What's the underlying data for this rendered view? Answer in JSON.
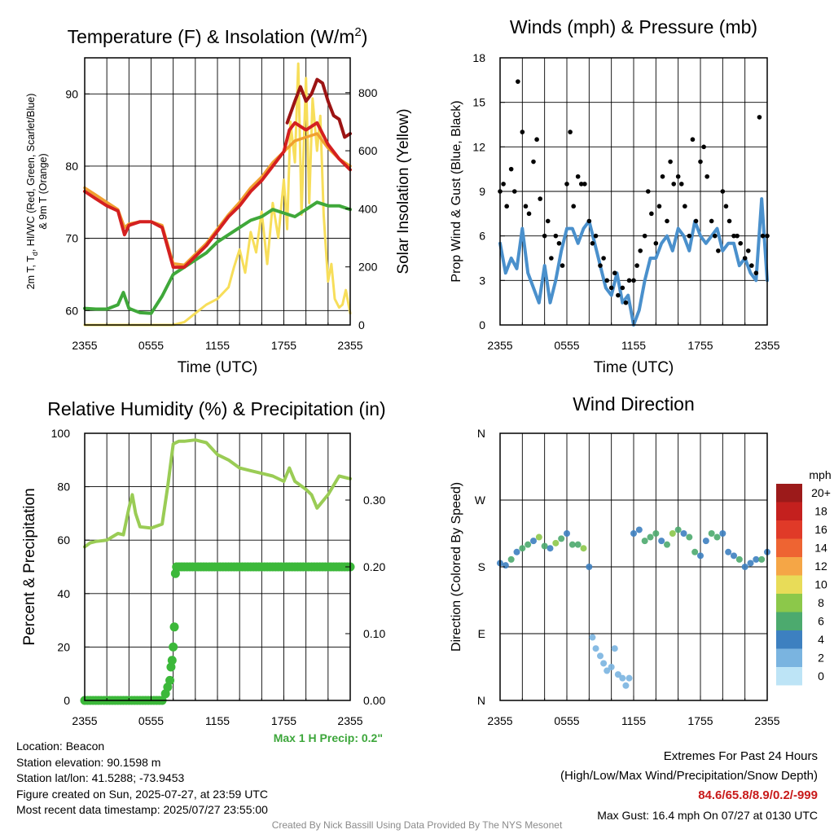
{
  "panels": {
    "temperature": {
      "title": "Temperature (F) & Insolation (W/m",
      "title_sup": "2",
      "title_close": ")",
      "ylabel_left_1": "2m T, T",
      "ylabel_left_sub": "d",
      "ylabel_left_2": ", HI/WC (Red, Green, Scarlet/Blue)",
      "ylabel_left_3": "& 9m T (Orange)",
      "ylabel_right": "Solar Insolation (Yellow)",
      "xlabel": "Time (UTC)"
    },
    "winds": {
      "title": "Winds (mph) & Pressure (mb)",
      "ylabel": "Prop Wind & Gust (Blue, Black)",
      "xlabel": "Time (UTC)"
    },
    "humidity": {
      "title": "Relative Humidity (%) & Precipitation (in)",
      "ylabel": "Percent & Precipitation",
      "max_precip": "Max 1 H Precip: 0.2\""
    },
    "direction": {
      "title": "Wind Direction",
      "ylabel": "Direction (Colored By Speed)",
      "legend_title": "mph"
    }
  },
  "station": {
    "location": "Location: Beacon",
    "elevation": "Station elevation: 90.1598 m",
    "latlon": "Station lat/lon: 41.5288; -73.9453",
    "created": "Figure created on Sun, 2025-07-27, at 23:59 UTC",
    "recent": "Most recent data timestamp: 2025/07/27 23:55:00"
  },
  "extremes": {
    "heading": "Extremes For Past 24 Hours",
    "subheading": "(High/Low/Max Wind/Precipitation/Snow Depth)",
    "values": "84.6/65.8/8.9/0.2/-999",
    "max_gust": "Max Gust: 16.4 mph On 07/27 at 0130 UTC"
  },
  "credit": "Created By Nick Bassill Using Data Provided By The NYS Mesonet",
  "chart_data": [
    {
      "type": "line",
      "title": "Temperature (F) & Insolation (W/m2)",
      "xlabel": "Time (UTC)",
      "x_ticks": [
        "2355",
        "0555",
        "1155",
        "1755",
        "2355"
      ],
      "xlim_hours": [
        0,
        24
      ],
      "ylabel": "2m T, Td, HI/WC (Red, Green, Scarlet/Blue) & 9m T (Orange)",
      "ylim": [
        58,
        95
      ],
      "y_ticks": [
        60,
        70,
        80,
        90
      ],
      "y2label": "Solar Insolation (Yellow)",
      "y2lim": [
        0,
        920
      ],
      "y2_ticks": [
        0,
        200,
        400,
        600,
        800
      ],
      "series": [
        {
          "name": "2m T (Red)",
          "axis": "left",
          "color": "#d42020",
          "x": [
            0,
            1,
            2,
            3,
            3.6,
            4,
            5,
            6,
            7,
            8,
            9,
            10,
            11,
            12,
            13,
            14,
            15,
            16,
            17,
            18,
            18.5,
            19,
            20,
            21,
            22,
            23,
            24
          ],
          "y": [
            76.5,
            75.5,
            74.5,
            73.8,
            70.5,
            71.8,
            72.3,
            72.3,
            71.5,
            66,
            66,
            67.5,
            69,
            71,
            73,
            74.5,
            76.5,
            78,
            80,
            82,
            85,
            86,
            85,
            86,
            83,
            81,
            79.5
          ]
        },
        {
          "name": "9m T (Orange)",
          "axis": "left",
          "color": "#f0a030",
          "x": [
            0,
            1,
            2,
            3,
            3.6,
            4,
            5,
            6,
            7,
            8,
            9,
            10,
            11,
            12,
            13,
            14,
            15,
            16,
            17,
            18,
            19,
            20,
            21,
            22,
            23,
            24
          ],
          "y": [
            77,
            76,
            75,
            74,
            71.5,
            72,
            72.3,
            72.3,
            71.8,
            66.5,
            66.3,
            67.8,
            69.3,
            71.3,
            73.3,
            75,
            77,
            78.5,
            80.5,
            82,
            83.5,
            84,
            84.5,
            82.5,
            81,
            80
          ]
        },
        {
          "name": "Heat Index (Scarlet)",
          "axis": "left",
          "color": "#9c1414",
          "x": [
            18.3,
            19,
            19.5,
            20,
            20.5,
            21,
            21.5,
            22,
            22.5,
            23,
            23.5,
            24
          ],
          "y": [
            86,
            89,
            91,
            89,
            90,
            92,
            91.5,
            89,
            87,
            86.5,
            84,
            84.5
          ]
        },
        {
          "name": "Td (Green)",
          "axis": "left",
          "color": "#3fa83a",
          "x": [
            0,
            1,
            2,
            3,
            3.5,
            4,
            4.5,
            5,
            6,
            7,
            8,
            9,
            10,
            11,
            12,
            13,
            14,
            15,
            16,
            17,
            18,
            19,
            20,
            21,
            22,
            23,
            24
          ],
          "y": [
            60.3,
            60.2,
            60.2,
            60.8,
            62.5,
            60.3,
            60,
            59.7,
            59.6,
            62,
            65,
            66,
            67,
            68,
            69.5,
            70.5,
            71.5,
            72.5,
            73,
            74,
            73.5,
            73,
            74,
            75,
            74.5,
            74.5,
            74
          ]
        },
        {
          "name": "Solar (Yellow)",
          "axis": "right",
          "color": "#f7de5a",
          "x": [
            0,
            6,
            7,
            8,
            9,
            10,
            11,
            12,
            13,
            13.5,
            14,
            14.5,
            15,
            15.5,
            16,
            16.5,
            17,
            17.5,
            18,
            18.3,
            18.6,
            19,
            19.3,
            19.6,
            20,
            20.3,
            20.6,
            21,
            21.3,
            21.6,
            22,
            22.3,
            22.6,
            23,
            23.3,
            23.6,
            24
          ],
          "y": [
            0,
            0,
            0,
            0,
            10,
            40,
            70,
            90,
            130,
            200,
            260,
            180,
            320,
            250,
            390,
            210,
            420,
            300,
            500,
            330,
            700,
            560,
            900,
            380,
            850,
            420,
            780,
            600,
            720,
            380,
            150,
            210,
            90,
            60,
            70,
            120,
            40
          ]
        }
      ]
    },
    {
      "type": "scatter",
      "title": "Winds (mph) & Pressure (mb)",
      "xlabel": "Time (UTC)",
      "x_ticks": [
        "2355",
        "0555",
        "1155",
        "1755",
        "2355"
      ],
      "xlim_hours": [
        0,
        24
      ],
      "ylabel": "Prop Wind & Gust (Blue, Black)",
      "ylim": [
        0,
        18
      ],
      "y_ticks": [
        0,
        3,
        6,
        9,
        12,
        15,
        18
      ],
      "series": [
        {
          "name": "Prop Wind (Blue)",
          "type": "line",
          "color": "#4a90cc",
          "x": [
            0,
            0.5,
            1,
            1.5,
            2,
            2.5,
            3,
            3.5,
            4,
            4.5,
            5,
            5.5,
            6,
            6.5,
            7,
            7.5,
            8,
            8.5,
            9,
            9.5,
            10,
            10.5,
            11,
            11.5,
            12,
            12.5,
            13,
            13.5,
            14,
            14.5,
            15,
            15.5,
            16,
            16.5,
            17,
            17.5,
            18,
            18.5,
            19,
            19.5,
            20,
            20.5,
            21,
            21.5,
            22,
            22.5,
            23,
            23.5,
            24
          ],
          "y": [
            5.5,
            3.5,
            4.5,
            3.8,
            6.5,
            3.5,
            2.5,
            1.5,
            4,
            1.5,
            3,
            5,
            6.5,
            6.5,
            5.5,
            6.5,
            7,
            5.5,
            4,
            2.5,
            2,
            3.5,
            1.5,
            2,
            0,
            1,
            3,
            4.5,
            4.5,
            5.5,
            6,
            5,
            6.5,
            6,
            5,
            7,
            6,
            5.5,
            6,
            6.5,
            5,
            5.5,
            5.5,
            4,
            4.5,
            3.5,
            3,
            8.5,
            3
          ]
        },
        {
          "name": "Gust (Black)",
          "type": "points",
          "color": "#000000",
          "x": [
            0,
            0.3,
            0.6,
            1,
            1.3,
            1.6,
            2,
            2.3,
            2.6,
            3,
            3.3,
            3.6,
            4,
            4.3,
            4.6,
            5,
            5.3,
            5.6,
            6,
            6.3,
            6.6,
            7,
            7.3,
            7.6,
            8,
            8.3,
            8.6,
            9,
            9.3,
            9.6,
            10,
            10.3,
            10.6,
            11,
            11.3,
            11.6,
            12,
            12.3,
            12.6,
            13,
            13.3,
            13.6,
            14,
            14.3,
            14.6,
            15,
            15.3,
            15.6,
            16,
            16.3,
            16.6,
            17,
            17.3,
            17.6,
            18,
            18.3,
            18.6,
            19,
            19.3,
            19.6,
            20,
            20.3,
            20.6,
            21,
            21.3,
            21.6,
            22,
            22.3,
            22.6,
            23,
            23.3,
            23.6,
            24
          ],
          "y": [
            9,
            9.5,
            8,
            10.5,
            9,
            16.4,
            13,
            8,
            7.5,
            11,
            12.5,
            8.5,
            6,
            7,
            4.5,
            6,
            5.5,
            4,
            9.5,
            13,
            8,
            10,
            9.5,
            9.5,
            7,
            5.5,
            6,
            4,
            4.5,
            3,
            2.5,
            3.5,
            2,
            2.5,
            1.5,
            3,
            3,
            4,
            5,
            6,
            9,
            7.5,
            5.5,
            8,
            10,
            7,
            11,
            9.5,
            10,
            9.5,
            8,
            6,
            12.5,
            7,
            11,
            12,
            10,
            7,
            6,
            5,
            9,
            8,
            7,
            6,
            6,
            5.5,
            4.5,
            5,
            4,
            3.5,
            14,
            6,
            6
          ]
        }
      ]
    },
    {
      "type": "line",
      "title": "Relative Humidity (%) & Precipitation (in)",
      "x_ticks": [
        "2355",
        "0555",
        "1155",
        "1755",
        "2355"
      ],
      "xlim_hours": [
        0,
        24
      ],
      "ylabel": "Percent & Precipitation",
      "ylim": [
        0,
        100
      ],
      "y_ticks": [
        0,
        20,
        40,
        60,
        80,
        100
      ],
      "y2lim": [
        0,
        0.4
      ],
      "y2_ticks": [
        "0.00",
        "0.10",
        "0.20",
        "0.30"
      ],
      "series": [
        {
          "name": "Relative Humidity",
          "axis": "left",
          "color": "#9acc55",
          "x": [
            0,
            0.5,
            1,
            2,
            3,
            3.5,
            4,
            4.3,
            4.6,
            5,
            6,
            7,
            7.5,
            8,
            8.5,
            9,
            10,
            11,
            12,
            13,
            14,
            15,
            16,
            17,
            18,
            18.5,
            19,
            20,
            20.5,
            21,
            22,
            23,
            24
          ],
          "y": [
            57.5,
            59,
            59.5,
            60,
            62.5,
            62,
            72,
            77,
            70,
            65,
            64.5,
            66,
            80,
            96,
            97,
            97,
            97.5,
            96.5,
            92,
            90,
            87,
            86,
            85,
            84,
            82,
            87,
            82,
            79,
            77,
            72,
            77,
            84,
            83
          ]
        },
        {
          "name": "Precipitation",
          "axis": "right",
          "type": "points",
          "color": "#3cb83a",
          "x": [
            0,
            1,
            2,
            3,
            4,
            5,
            6,
            7,
            7.3,
            7.5,
            7.7,
            7.8,
            7.9,
            8,
            8.1,
            8.2,
            8.3,
            9,
            10,
            11,
            12,
            13,
            14,
            15,
            16,
            17,
            18,
            19,
            20,
            21,
            22,
            23,
            24
          ],
          "y": [
            0,
            0,
            0,
            0,
            0,
            0,
            0,
            0,
            0.01,
            0.02,
            0.03,
            0.05,
            0.06,
            0.08,
            0.11,
            0.19,
            0.2,
            0.2,
            0.2,
            0.2,
            0.2,
            0.2,
            0.2,
            0.2,
            0.2,
            0.2,
            0.2,
            0.2,
            0.2,
            0.2,
            0.2,
            0.2,
            0.2
          ]
        }
      ]
    },
    {
      "type": "scatter",
      "title": "Wind Direction",
      "x_ticks": [
        "2355",
        "0555",
        "1155",
        "1755",
        "2355"
      ],
      "xlim_hours": [
        0,
        24
      ],
      "ylabel": "Direction (Colored By Speed)",
      "y_ticks": [
        "N",
        "E",
        "S",
        "W",
        "N"
      ],
      "ylim_degrees": [
        0,
        360
      ],
      "legend": {
        "title": "mph",
        "labels": [
          "20+",
          "18",
          "16",
          "14",
          "12",
          "10",
          "8",
          "6",
          "4",
          "2",
          "0"
        ],
        "colors": [
          "#9c1a1a",
          "#c4201e",
          "#e03a28",
          "#ee6432",
          "#f5a646",
          "#e8dc58",
          "#8cc84a",
          "#4caa6e",
          "#3d80c0",
          "#7ab4e0",
          "#bde4f6"
        ]
      },
      "series": [
        {
          "name": "Wind direction (deg)",
          "x": [
            0,
            0.5,
            1,
            1.5,
            2,
            2.5,
            3,
            3.5,
            4,
            4.5,
            5,
            5.5,
            6,
            6.5,
            7,
            7.5,
            8,
            8.3,
            8.6,
            9,
            9.3,
            9.6,
            10,
            10.3,
            10.6,
            11,
            11.3,
            11.6,
            12,
            12.5,
            13,
            13.5,
            14,
            14.5,
            15,
            15.5,
            16,
            16.5,
            17,
            17.5,
            18,
            18.5,
            19,
            19.5,
            20,
            20.5,
            21,
            21.5,
            22,
            22.5,
            23,
            23.5,
            24
          ],
          "y": [
            185,
            182,
            190,
            200,
            205,
            210,
            215,
            220,
            208,
            205,
            212,
            218,
            225,
            210,
            210,
            205,
            180,
            85,
            70,
            60,
            50,
            40,
            45,
            70,
            35,
            30,
            20,
            30,
            225,
            230,
            215,
            220,
            225,
            215,
            210,
            225,
            230,
            225,
            220,
            200,
            195,
            215,
            225,
            220,
            225,
            200,
            195,
            190,
            180,
            185,
            190,
            190,
            200
          ],
          "speed_mph": [
            3,
            4,
            5,
            3,
            6,
            5,
            4,
            7,
            5,
            3,
            8,
            6,
            4,
            5,
            5,
            7,
            3,
            1,
            1,
            2,
            2,
            1,
            1,
            2,
            1,
            1,
            2,
            1,
            3,
            4,
            5,
            6,
            5,
            4,
            6,
            7,
            5,
            4,
            6,
            5,
            3,
            4,
            5,
            6,
            4,
            3,
            4,
            5,
            4,
            3,
            4,
            6,
            3
          ]
        }
      ]
    }
  ]
}
